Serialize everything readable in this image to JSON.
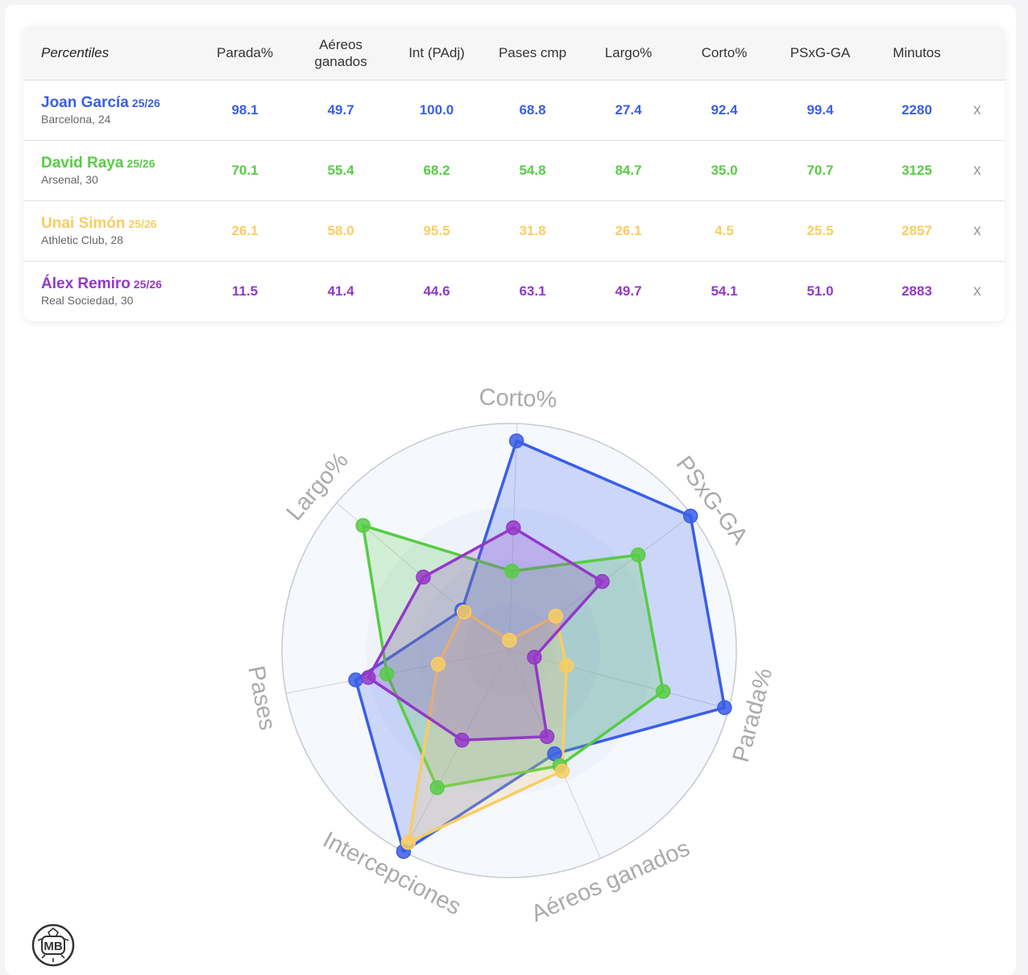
{
  "table": {
    "header_label": "Percentiles",
    "columns": [
      "Parada%",
      "Aéreos ganados",
      "Int (PAdj)",
      "Pases cmp",
      "Largo%",
      "Corto%",
      "PSxG-GA",
      "Minutos"
    ],
    "remove_label": "x",
    "players": [
      {
        "name": "Joan García",
        "season": "25/26",
        "club": "Barcelona, 24",
        "color": "#3a5ee8",
        "values": [
          "98.1",
          "49.7",
          "100.0",
          "68.8",
          "27.4",
          "92.4",
          "99.4",
          "2280"
        ]
      },
      {
        "name": "David Raya",
        "season": "25/26",
        "club": "Arsenal, 30",
        "color": "#57cc45",
        "values": [
          "70.1",
          "55.4",
          "68.2",
          "54.8",
          "84.7",
          "35.0",
          "70.7",
          "3125"
        ]
      },
      {
        "name": "Unai Simón",
        "season": "25/26",
        "club": "Athletic Club, 28",
        "color": "#f9cd62",
        "values": [
          "26.1",
          "58.0",
          "95.5",
          "31.8",
          "26.1",
          "4.5",
          "25.5",
          "2857"
        ]
      },
      {
        "name": "Álex Remiro",
        "season": "25/26",
        "club": "Real Sociedad, 30",
        "color": "#9438c8",
        "values": [
          "11.5",
          "41.4",
          "44.6",
          "63.1",
          "49.7",
          "54.1",
          "51.0",
          "2883"
        ]
      }
    ]
  },
  "chart_data": {
    "type": "radar",
    "axes": [
      "Corto%",
      "PSxG-GA",
      "Parada%",
      "Aéreos ganados",
      "Intercepciones",
      "Pases",
      "Largo%"
    ],
    "range": [
      0,
      100
    ],
    "series": [
      {
        "name": "Joan García",
        "color": "#3a5ee8",
        "values": [
          92.4,
          99.4,
          98.1,
          49.7,
          100.0,
          68.8,
          27.4
        ]
      },
      {
        "name": "David Raya",
        "color": "#57cc45",
        "values": [
          35.0,
          70.7,
          70.1,
          55.4,
          68.2,
          54.8,
          84.7
        ]
      },
      {
        "name": "Unai Simón",
        "color": "#f9cd62",
        "values": [
          4.5,
          25.5,
          26.1,
          58.0,
          95.5,
          31.8,
          26.1
        ]
      },
      {
        "name": "Álex Remiro",
        "color": "#9438c8",
        "values": [
          54.1,
          51.0,
          11.5,
          41.4,
          44.6,
          63.1,
          49.7
        ]
      }
    ]
  },
  "logo": {
    "text": "MB"
  }
}
